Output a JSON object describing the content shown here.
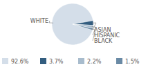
{
  "chart_data": {
    "type": "pie",
    "categories": [
      "WHITE",
      "ASIAN",
      "HISPANIC",
      "BLACK"
    ],
    "values": [
      92.6,
      3.7,
      2.2,
      1.5
    ],
    "value_labels": [
      "92.6%",
      "3.7%",
      "2.2%",
      "1.5%"
    ],
    "colors": [
      "#d4dee9",
      "#335d7f",
      "#a8bccd",
      "#6a8aa5"
    ],
    "legend": "bottom"
  }
}
